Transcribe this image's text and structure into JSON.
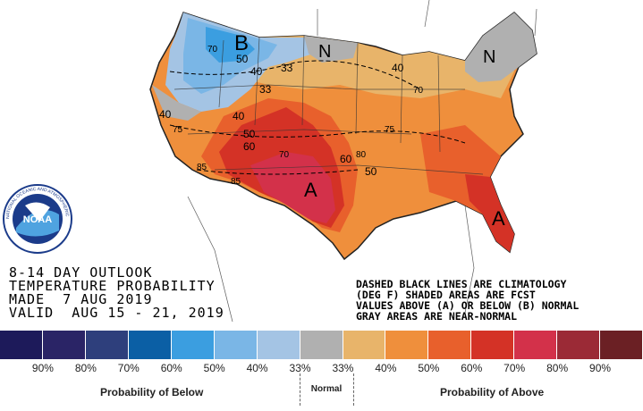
{
  "title": {
    "line1": "8-14 DAY OUTLOOK",
    "line2": "TEMPERATURE PROBABILITY",
    "line3": "MADE  7 AUG 2019",
    "line4": "VALID  AUG 15 - 21, 2019"
  },
  "notes": {
    "line1": "DASHED BLACK LINES ARE CLIMATOLOGY",
    "line2": "(DEG F) SHADED AREAS ARE FCST",
    "line3": "VALUES ABOVE (A) OR BELOW (B) NORMAL",
    "line4": "GRAY AREAS ARE NEAR-NORMAL"
  },
  "logo": {
    "text": "NOAA",
    "ring_text": "NATIONAL OCEANIC AND ATMOSPHERIC ADMINISTRATION · U.S. DEPARTMENT OF COMMERCE"
  },
  "map_labels": {
    "b": "B",
    "a1": "A",
    "a2": "A",
    "n1": "N",
    "n2": "N",
    "c70a": "70",
    "c70b": "70",
    "c70c": "70",
    "c50a": "50",
    "c50b": "50",
    "c50c": "50",
    "c40a": "40",
    "c40b": "40",
    "c40c": "40",
    "c40d": "40",
    "c33a": "33",
    "c33b": "33",
    "c60a": "60",
    "c60b": "60",
    "c75a": "75",
    "c75b": "75",
    "c80": "80",
    "c85a": "85",
    "c85b": "85"
  },
  "legend": {
    "colors": [
      "#1d1a5a",
      "#2a2466",
      "#2e3f7c",
      "#0b5fa5",
      "#3b9ee0",
      "#7ab6e6",
      "#a4c4e4",
      "#b0b0b0",
      "#e8b46a",
      "#ef8f3c",
      "#e8602c",
      "#d43226",
      "#d3314a",
      "#9b2a36",
      "#6b2024"
    ],
    "percents": [
      "90%",
      "80%",
      "70%",
      "60%",
      "50%",
      "40%",
      "33%",
      "33%",
      "40%",
      "50%",
      "60%",
      "70%",
      "80%",
      "90%"
    ],
    "below_caption": "Probability of Below",
    "normal_caption": "Normal",
    "above_caption": "Probability of Above"
  }
}
